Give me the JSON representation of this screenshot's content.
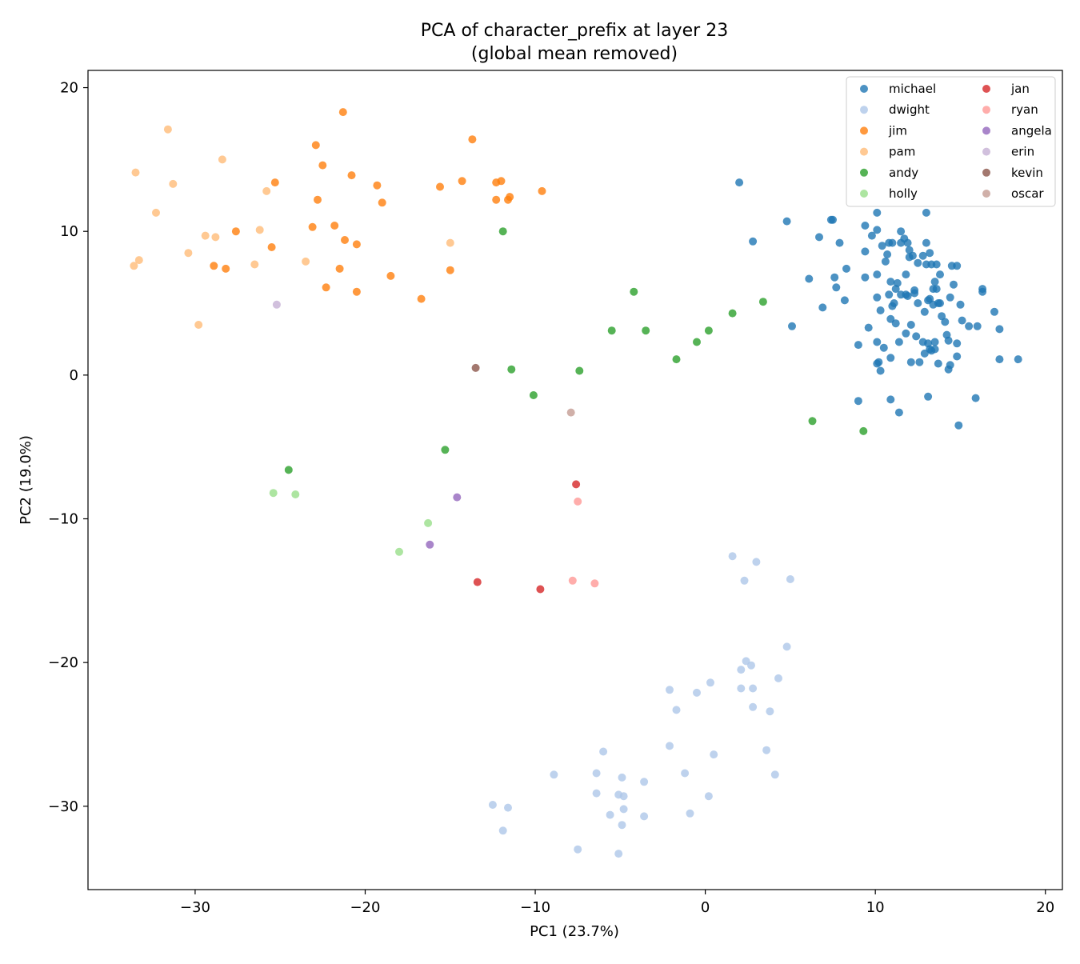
{
  "chart_data": {
    "type": "scatter",
    "title": "PCA of character_prefix at layer 23",
    "subtitle": "(global mean removed)",
    "xlabel": "PC1 (23.7%)",
    "ylabel": "PC2 (19.0%)",
    "xlim": [
      -36.3,
      21.0
    ],
    "ylim": [
      -35.8,
      21.2
    ],
    "xticks": [
      -30,
      -20,
      -10,
      0,
      10,
      20
    ],
    "yticks": [
      -30,
      -20,
      -10,
      0,
      10,
      20
    ],
    "grid": false,
    "legend_placement": "top-right",
    "series": [
      {
        "name": "michael",
        "color": "#1f77b4",
        "points": [
          [
            2.0,
            13.4
          ],
          [
            4.8,
            10.7
          ],
          [
            2.8,
            9.3
          ],
          [
            7.4,
            10.8
          ],
          [
            7.5,
            10.8
          ],
          [
            9.4,
            10.4
          ],
          [
            10.1,
            11.3
          ],
          [
            13.0,
            11.3
          ],
          [
            6.7,
            9.6
          ],
          [
            7.9,
            9.2
          ],
          [
            9.8,
            9.7
          ],
          [
            10.1,
            10.1
          ],
          [
            10.4,
            9.0
          ],
          [
            10.8,
            9.2
          ],
          [
            11.0,
            9.2
          ],
          [
            11.5,
            10.0
          ],
          [
            11.7,
            9.5
          ],
          [
            11.5,
            9.2
          ],
          [
            11.9,
            9.2
          ],
          [
            12.0,
            8.7
          ],
          [
            13.0,
            9.2
          ],
          [
            9.4,
            8.6
          ],
          [
            10.7,
            8.4
          ],
          [
            10.6,
            7.9
          ],
          [
            12.0,
            8.2
          ],
          [
            12.2,
            8.3
          ],
          [
            12.8,
            8.3
          ],
          [
            13.2,
            8.5
          ],
          [
            7.6,
            6.8
          ],
          [
            8.3,
            7.4
          ],
          [
            10.1,
            7.0
          ],
          [
            11.8,
            7.0
          ],
          [
            12.5,
            7.8
          ],
          [
            13.0,
            7.7
          ],
          [
            13.3,
            7.7
          ],
          [
            13.6,
            7.7
          ],
          [
            13.8,
            7.0
          ],
          [
            14.5,
            7.6
          ],
          [
            14.8,
            7.6
          ],
          [
            6.1,
            6.7
          ],
          [
            7.7,
            6.1
          ],
          [
            9.4,
            6.8
          ],
          [
            10.9,
            6.5
          ],
          [
            11.3,
            6.4
          ],
          [
            11.2,
            6.0
          ],
          [
            11.8,
            5.6
          ],
          [
            12.3,
            5.9
          ],
          [
            12.3,
            5.7
          ],
          [
            13.4,
            6.0
          ],
          [
            13.6,
            6.0
          ],
          [
            13.5,
            6.5
          ],
          [
            14.6,
            6.3
          ],
          [
            16.3,
            6.0
          ],
          [
            16.3,
            5.8
          ],
          [
            8.2,
            5.2
          ],
          [
            10.1,
            5.4
          ],
          [
            10.8,
            5.6
          ],
          [
            11.5,
            5.6
          ],
          [
            11.9,
            5.5
          ],
          [
            12.5,
            5.0
          ],
          [
            13.1,
            5.2
          ],
          [
            13.2,
            5.3
          ],
          [
            13.7,
            5.0
          ],
          [
            13.8,
            5.0
          ],
          [
            14.4,
            5.4
          ],
          [
            15.0,
            4.9
          ],
          [
            17.0,
            4.4
          ],
          [
            6.9,
            4.7
          ],
          [
            10.3,
            4.5
          ],
          [
            11.0,
            4.8
          ],
          [
            11.1,
            5.0
          ],
          [
            12.9,
            4.4
          ],
          [
            13.4,
            4.9
          ],
          [
            13.9,
            4.1
          ],
          [
            5.1,
            3.4
          ],
          [
            9.6,
            3.3
          ],
          [
            10.9,
            3.9
          ],
          [
            11.2,
            3.6
          ],
          [
            12.1,
            3.5
          ],
          [
            14.1,
            3.7
          ],
          [
            15.1,
            3.8
          ],
          [
            15.5,
            3.4
          ],
          [
            16.0,
            3.4
          ],
          [
            17.3,
            3.2
          ],
          [
            11.8,
            2.9
          ],
          [
            12.4,
            2.7
          ],
          [
            12.8,
            2.3
          ],
          [
            13.1,
            2.2
          ],
          [
            13.5,
            2.3
          ],
          [
            13.2,
            1.8
          ],
          [
            14.2,
            2.8
          ],
          [
            14.3,
            2.4
          ],
          [
            14.8,
            2.2
          ],
          [
            9.0,
            2.1
          ],
          [
            10.1,
            2.3
          ],
          [
            10.5,
            1.9
          ],
          [
            11.4,
            2.3
          ],
          [
            12.9,
            1.5
          ],
          [
            13.3,
            1.7
          ],
          [
            13.5,
            1.8
          ],
          [
            10.9,
            1.2
          ],
          [
            10.1,
            0.8
          ],
          [
            10.2,
            0.9
          ],
          [
            10.3,
            0.3
          ],
          [
            12.1,
            0.9
          ],
          [
            12.6,
            0.9
          ],
          [
            13.7,
            0.8
          ],
          [
            14.4,
            0.7
          ],
          [
            14.3,
            0.4
          ],
          [
            14.8,
            1.3
          ],
          [
            17.3,
            1.1
          ],
          [
            18.4,
            1.1
          ],
          [
            9.0,
            -1.8
          ],
          [
            10.9,
            -1.7
          ],
          [
            11.4,
            -2.6
          ],
          [
            13.1,
            -1.5
          ],
          [
            15.9,
            -1.6
          ],
          [
            14.9,
            -3.5
          ]
        ]
      },
      {
        "name": "dwight",
        "color": "#aec7e8",
        "points": [
          [
            1.6,
            -12.6
          ],
          [
            3.0,
            -13.0
          ],
          [
            2.3,
            -14.3
          ],
          [
            5.0,
            -14.2
          ],
          [
            4.8,
            -18.9
          ],
          [
            2.4,
            -19.9
          ],
          [
            2.7,
            -20.2
          ],
          [
            2.1,
            -20.5
          ],
          [
            4.3,
            -21.1
          ],
          [
            0.3,
            -21.4
          ],
          [
            -2.1,
            -21.9
          ],
          [
            -0.5,
            -22.1
          ],
          [
            2.1,
            -21.8
          ],
          [
            2.8,
            -21.8
          ],
          [
            -1.7,
            -23.3
          ],
          [
            2.8,
            -23.1
          ],
          [
            3.8,
            -23.4
          ],
          [
            -2.1,
            -25.8
          ],
          [
            0.5,
            -26.4
          ],
          [
            3.6,
            -26.1
          ],
          [
            -6.0,
            -26.2
          ],
          [
            -8.9,
            -27.8
          ],
          [
            -6.4,
            -27.7
          ],
          [
            -4.9,
            -28.0
          ],
          [
            -3.6,
            -28.3
          ],
          [
            -1.2,
            -27.7
          ],
          [
            4.1,
            -27.8
          ],
          [
            -6.4,
            -29.1
          ],
          [
            -5.1,
            -29.2
          ],
          [
            -4.8,
            -29.3
          ],
          [
            0.2,
            -29.3
          ],
          [
            -12.5,
            -29.9
          ],
          [
            -11.6,
            -30.1
          ],
          [
            -4.8,
            -30.2
          ],
          [
            -5.6,
            -30.6
          ],
          [
            -3.6,
            -30.7
          ],
          [
            -0.9,
            -30.5
          ],
          [
            -4.9,
            -31.3
          ],
          [
            -11.9,
            -31.7
          ],
          [
            -7.5,
            -33.0
          ],
          [
            -5.1,
            -33.3
          ]
        ]
      },
      {
        "name": "jim",
        "color": "#ff7f0e",
        "points": [
          [
            -21.3,
            18.3
          ],
          [
            -13.7,
            16.4
          ],
          [
            -22.9,
            16.0
          ],
          [
            -22.5,
            14.6
          ],
          [
            -20.8,
            13.9
          ],
          [
            -25.3,
            13.4
          ],
          [
            -19.3,
            13.2
          ],
          [
            -15.6,
            13.1
          ],
          [
            -14.3,
            13.5
          ],
          [
            -12.3,
            13.4
          ],
          [
            -12.0,
            13.5
          ],
          [
            -9.6,
            12.8
          ],
          [
            -22.8,
            12.2
          ],
          [
            -19.0,
            12.0
          ],
          [
            -12.3,
            12.2
          ],
          [
            -11.6,
            12.2
          ],
          [
            -11.5,
            12.4
          ],
          [
            -23.1,
            10.3
          ],
          [
            -21.8,
            10.4
          ],
          [
            -27.6,
            10.0
          ],
          [
            -21.2,
            9.4
          ],
          [
            -20.5,
            9.1
          ],
          [
            -25.5,
            8.9
          ],
          [
            -28.9,
            7.6
          ],
          [
            -28.2,
            7.4
          ],
          [
            -21.5,
            7.4
          ],
          [
            -18.5,
            6.9
          ],
          [
            -15.0,
            7.3
          ],
          [
            -22.3,
            6.1
          ],
          [
            -20.5,
            5.8
          ],
          [
            -16.7,
            5.3
          ]
        ]
      },
      {
        "name": "pam",
        "color": "#ffbb78",
        "points": [
          [
            -31.6,
            17.1
          ],
          [
            -28.4,
            15.0
          ],
          [
            -33.5,
            14.1
          ],
          [
            -31.3,
            13.3
          ],
          [
            -25.8,
            12.8
          ],
          [
            -32.3,
            11.3
          ],
          [
            -26.2,
            10.1
          ],
          [
            -29.4,
            9.7
          ],
          [
            -28.8,
            9.6
          ],
          [
            -15.0,
            9.2
          ],
          [
            -30.4,
            8.5
          ],
          [
            -33.3,
            8.0
          ],
          [
            -33.6,
            7.6
          ],
          [
            -26.5,
            7.7
          ],
          [
            -23.5,
            7.9
          ],
          [
            -29.8,
            3.5
          ]
        ]
      },
      {
        "name": "andy",
        "color": "#2ca02c",
        "points": [
          [
            -11.9,
            10.0
          ],
          [
            -4.2,
            5.8
          ],
          [
            3.4,
            5.1
          ],
          [
            1.6,
            4.3
          ],
          [
            -5.5,
            3.1
          ],
          [
            -3.5,
            3.1
          ],
          [
            0.2,
            3.1
          ],
          [
            -0.5,
            2.3
          ],
          [
            -1.7,
            1.1
          ],
          [
            -11.4,
            0.4
          ],
          [
            -7.4,
            0.3
          ],
          [
            -10.1,
            -1.4
          ],
          [
            6.3,
            -3.2
          ],
          [
            9.3,
            -3.9
          ],
          [
            -15.3,
            -5.2
          ],
          [
            -24.5,
            -6.6
          ]
        ]
      },
      {
        "name": "holly",
        "color": "#98df8a",
        "points": [
          [
            -25.4,
            -8.2
          ],
          [
            -24.1,
            -8.3
          ],
          [
            -16.3,
            -10.3
          ],
          [
            -18.0,
            -12.3
          ]
        ]
      },
      {
        "name": "jan",
        "color": "#d62728",
        "points": [
          [
            -7.6,
            -7.6
          ],
          [
            -13.4,
            -14.4
          ],
          [
            -9.7,
            -14.9
          ]
        ]
      },
      {
        "name": "ryan",
        "color": "#ff9896",
        "points": [
          [
            -7.5,
            -8.8
          ],
          [
            -7.8,
            -14.3
          ],
          [
            -6.5,
            -14.5
          ]
        ]
      },
      {
        "name": "angela",
        "color": "#9467bd",
        "points": [
          [
            -14.6,
            -8.5
          ],
          [
            -16.2,
            -11.8
          ]
        ]
      },
      {
        "name": "erin",
        "color": "#c5b0d5",
        "points": [
          [
            -25.2,
            4.9
          ]
        ]
      },
      {
        "name": "kevin",
        "color": "#8c564b",
        "points": [
          [
            -13.5,
            0.5
          ]
        ]
      },
      {
        "name": "oscar",
        "color": "#c49c94",
        "points": [
          [
            -7.9,
            -2.6
          ]
        ]
      }
    ]
  }
}
